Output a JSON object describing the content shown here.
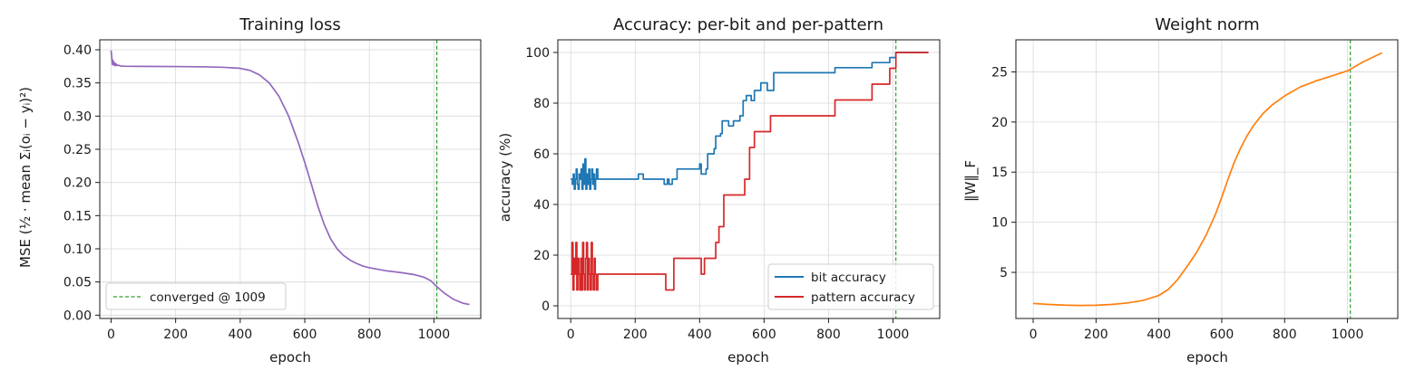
{
  "chart_data": [
    {
      "id": "loss",
      "type": "line",
      "title": "Training loss",
      "xlabel": "epoch",
      "ylabel": "MSE  (½ · mean Σᵢ(oᵢ − yᵢ)²)",
      "xlim": [
        -35,
        1145
      ],
      "ylim": [
        -0.005,
        0.415
      ],
      "xticks": [
        0,
        200,
        400,
        600,
        800,
        1000
      ],
      "yticks": [
        0.0,
        0.05,
        0.1,
        0.15,
        0.2,
        0.25,
        0.3,
        0.35,
        0.4
      ],
      "yticks_labels": [
        "0.00",
        "0.05",
        "0.10",
        "0.15",
        "0.20",
        "0.25",
        "0.30",
        "0.35",
        "0.40"
      ],
      "grid": true,
      "legend_position": "lower-left",
      "vline": {
        "x": 1009,
        "label": "converged @ 1009",
        "color": "#2ca02c"
      },
      "series": [
        {
          "color": "#9467bd",
          "points": [
            [
              0,
              0.399
            ],
            [
              2,
              0.39
            ],
            [
              4,
              0.378
            ],
            [
              6,
              0.384
            ],
            [
              8,
              0.377
            ],
            [
              10,
              0.381
            ],
            [
              12,
              0.376
            ],
            [
              15,
              0.379
            ],
            [
              18,
              0.376
            ],
            [
              22,
              0.377
            ],
            [
              26,
              0.376
            ],
            [
              30,
              0.3755
            ],
            [
              40,
              0.3752
            ],
            [
              60,
              0.375
            ],
            [
              100,
              0.3749
            ],
            [
              200,
              0.3747
            ],
            [
              300,
              0.3742
            ],
            [
              350,
              0.3735
            ],
            [
              400,
              0.372
            ],
            [
              430,
              0.369
            ],
            [
              460,
              0.362
            ],
            [
              490,
              0.35
            ],
            [
              520,
              0.33
            ],
            [
              550,
              0.3
            ],
            [
              580,
              0.26
            ],
            [
              600,
              0.23
            ],
            [
              620,
              0.198
            ],
            [
              640,
              0.165
            ],
            [
              660,
              0.137
            ],
            [
              680,
              0.115
            ],
            [
              700,
              0.1
            ],
            [
              720,
              0.09
            ],
            [
              740,
              0.083
            ],
            [
              760,
              0.078
            ],
            [
              780,
              0.074
            ],
            [
              800,
              0.0715
            ],
            [
              850,
              0.067
            ],
            [
              900,
              0.064
            ],
            [
              940,
              0.061
            ],
            [
              970,
              0.057
            ],
            [
              990,
              0.052
            ],
            [
              1009,
              0.043
            ],
            [
              1030,
              0.034
            ],
            [
              1060,
              0.024
            ],
            [
              1090,
              0.018
            ],
            [
              1110,
              0.016
            ]
          ]
        }
      ]
    },
    {
      "id": "accuracy",
      "type": "line",
      "title": "Accuracy: per-bit and per-pattern",
      "xlabel": "epoch",
      "ylabel": "accuracy (%)",
      "xlim": [
        -40,
        1145
      ],
      "ylim": [
        -5,
        105
      ],
      "xticks": [
        0,
        200,
        400,
        600,
        800,
        1000
      ],
      "yticks": [
        0,
        20,
        40,
        60,
        80,
        100
      ],
      "yticks_labels": [
        "0",
        "20",
        "40",
        "60",
        "80",
        "100"
      ],
      "grid": true,
      "legend_position": "lower-right",
      "vline": {
        "x": 1009,
        "label": "",
        "color": "#2ca02c"
      },
      "series": [
        {
          "name": "bit accuracy",
          "color": "#1f77b4",
          "step": true,
          "points": [
            [
              0,
              50
            ],
            [
              5,
              48
            ],
            [
              8,
              52
            ],
            [
              11,
              46
            ],
            [
              14,
              50
            ],
            [
              17,
              54
            ],
            [
              20,
              48
            ],
            [
              23,
              46
            ],
            [
              26,
              52
            ],
            [
              29,
              50
            ],
            [
              32,
              54
            ],
            [
              35,
              46
            ],
            [
              38,
              56
            ],
            [
              41,
              48
            ],
            [
              44,
              58
            ],
            [
              47,
              46
            ],
            [
              50,
              52
            ],
            [
              53,
              48
            ],
            [
              56,
              54
            ],
            [
              59,
              46
            ],
            [
              62,
              50
            ],
            [
              65,
              54
            ],
            [
              68,
              48
            ],
            [
              71,
              52
            ],
            [
              74,
              46
            ],
            [
              77,
              50
            ],
            [
              80,
              54
            ],
            [
              84,
              50
            ],
            [
              210,
              52
            ],
            [
              225,
              50
            ],
            [
              290,
              48
            ],
            [
              300,
              50
            ],
            [
              305,
              48
            ],
            [
              315,
              50
            ],
            [
              330,
              54
            ],
            [
              400,
              56
            ],
            [
              405,
              52
            ],
            [
              420,
              54
            ],
            [
              425,
              60
            ],
            [
              445,
              62
            ],
            [
              450,
              67
            ],
            [
              465,
              68
            ],
            [
              470,
              73
            ],
            [
              490,
              71
            ],
            [
              505,
              73
            ],
            [
              525,
              75
            ],
            [
              535,
              81
            ],
            [
              545,
              83
            ],
            [
              560,
              81
            ],
            [
              570,
              85
            ],
            [
              590,
              88
            ],
            [
              610,
              85
            ],
            [
              630,
              92
            ],
            [
              820,
              94
            ],
            [
              935,
              96
            ],
            [
              990,
              98
            ],
            [
              1009,
              100
            ],
            [
              1110,
              100
            ]
          ]
        },
        {
          "name": "pattern accuracy",
          "color": "#d62728",
          "step": true,
          "points": [
            [
              0,
              12.5
            ],
            [
              4,
              25
            ],
            [
              7,
              6.25
            ],
            [
              10,
              18.75
            ],
            [
              13,
              12.5
            ],
            [
              16,
              25
            ],
            [
              19,
              6.25
            ],
            [
              22,
              18.75
            ],
            [
              25,
              12.5
            ],
            [
              28,
              6.25
            ],
            [
              31,
              18.75
            ],
            [
              34,
              6.25
            ],
            [
              37,
              25
            ],
            [
              40,
              12.5
            ],
            [
              43,
              6.25
            ],
            [
              46,
              18.75
            ],
            [
              49,
              25
            ],
            [
              52,
              6.25
            ],
            [
              55,
              18.75
            ],
            [
              58,
              12.5
            ],
            [
              61,
              6.25
            ],
            [
              64,
              25
            ],
            [
              67,
              12.5
            ],
            [
              70,
              6.25
            ],
            [
              73,
              18.75
            ],
            [
              76,
              12.5
            ],
            [
              79,
              6.25
            ],
            [
              84,
              12.5
            ],
            [
              295,
              6.25
            ],
            [
              320,
              18.75
            ],
            [
              405,
              12.5
            ],
            [
              415,
              18.75
            ],
            [
              450,
              25
            ],
            [
              460,
              31.25
            ],
            [
              475,
              43.75
            ],
            [
              540,
              50
            ],
            [
              555,
              62.5
            ],
            [
              570,
              68.75
            ],
            [
              620,
              75
            ],
            [
              820,
              81.25
            ],
            [
              935,
              87.5
            ],
            [
              990,
              93.75
            ],
            [
              1009,
              100
            ],
            [
              1110,
              100
            ]
          ]
        }
      ]
    },
    {
      "id": "weight",
      "type": "line",
      "title": "Weight norm",
      "xlabel": "epoch",
      "ylabel": "‖W‖_F",
      "xlim": [
        -55,
        1160
      ],
      "ylim": [
        0.4,
        28.2
      ],
      "xticks": [
        0,
        200,
        400,
        600,
        800,
        1000
      ],
      "yticks": [
        5,
        10,
        15,
        20,
        25
      ],
      "yticks_labels": [
        "5",
        "10",
        "15",
        "20",
        "25"
      ],
      "grid": true,
      "vline": {
        "x": 1009,
        "label": "",
        "color": "#2ca02c"
      },
      "series": [
        {
          "color": "#ff7f0e",
          "points": [
            [
              0,
              1.9
            ],
            [
              50,
              1.8
            ],
            [
              100,
              1.73
            ],
            [
              150,
              1.7
            ],
            [
              200,
              1.72
            ],
            [
              250,
              1.8
            ],
            [
              300,
              1.95
            ],
            [
              350,
              2.2
            ],
            [
              400,
              2.7
            ],
            [
              430,
              3.3
            ],
            [
              460,
              4.3
            ],
            [
              490,
              5.6
            ],
            [
              520,
              7.0
            ],
            [
              550,
              8.7
            ],
            [
              580,
              10.8
            ],
            [
              600,
              12.5
            ],
            [
              620,
              14.3
            ],
            [
              640,
              16.0
            ],
            [
              660,
              17.4
            ],
            [
              680,
              18.6
            ],
            [
              700,
              19.6
            ],
            [
              730,
              20.8
            ],
            [
              760,
              21.7
            ],
            [
              800,
              22.6
            ],
            [
              850,
              23.5
            ],
            [
              900,
              24.1
            ],
            [
              950,
              24.6
            ],
            [
              1000,
              25.1
            ],
            [
              1050,
              26.0
            ],
            [
              1110,
              26.9
            ]
          ]
        }
      ]
    }
  ]
}
